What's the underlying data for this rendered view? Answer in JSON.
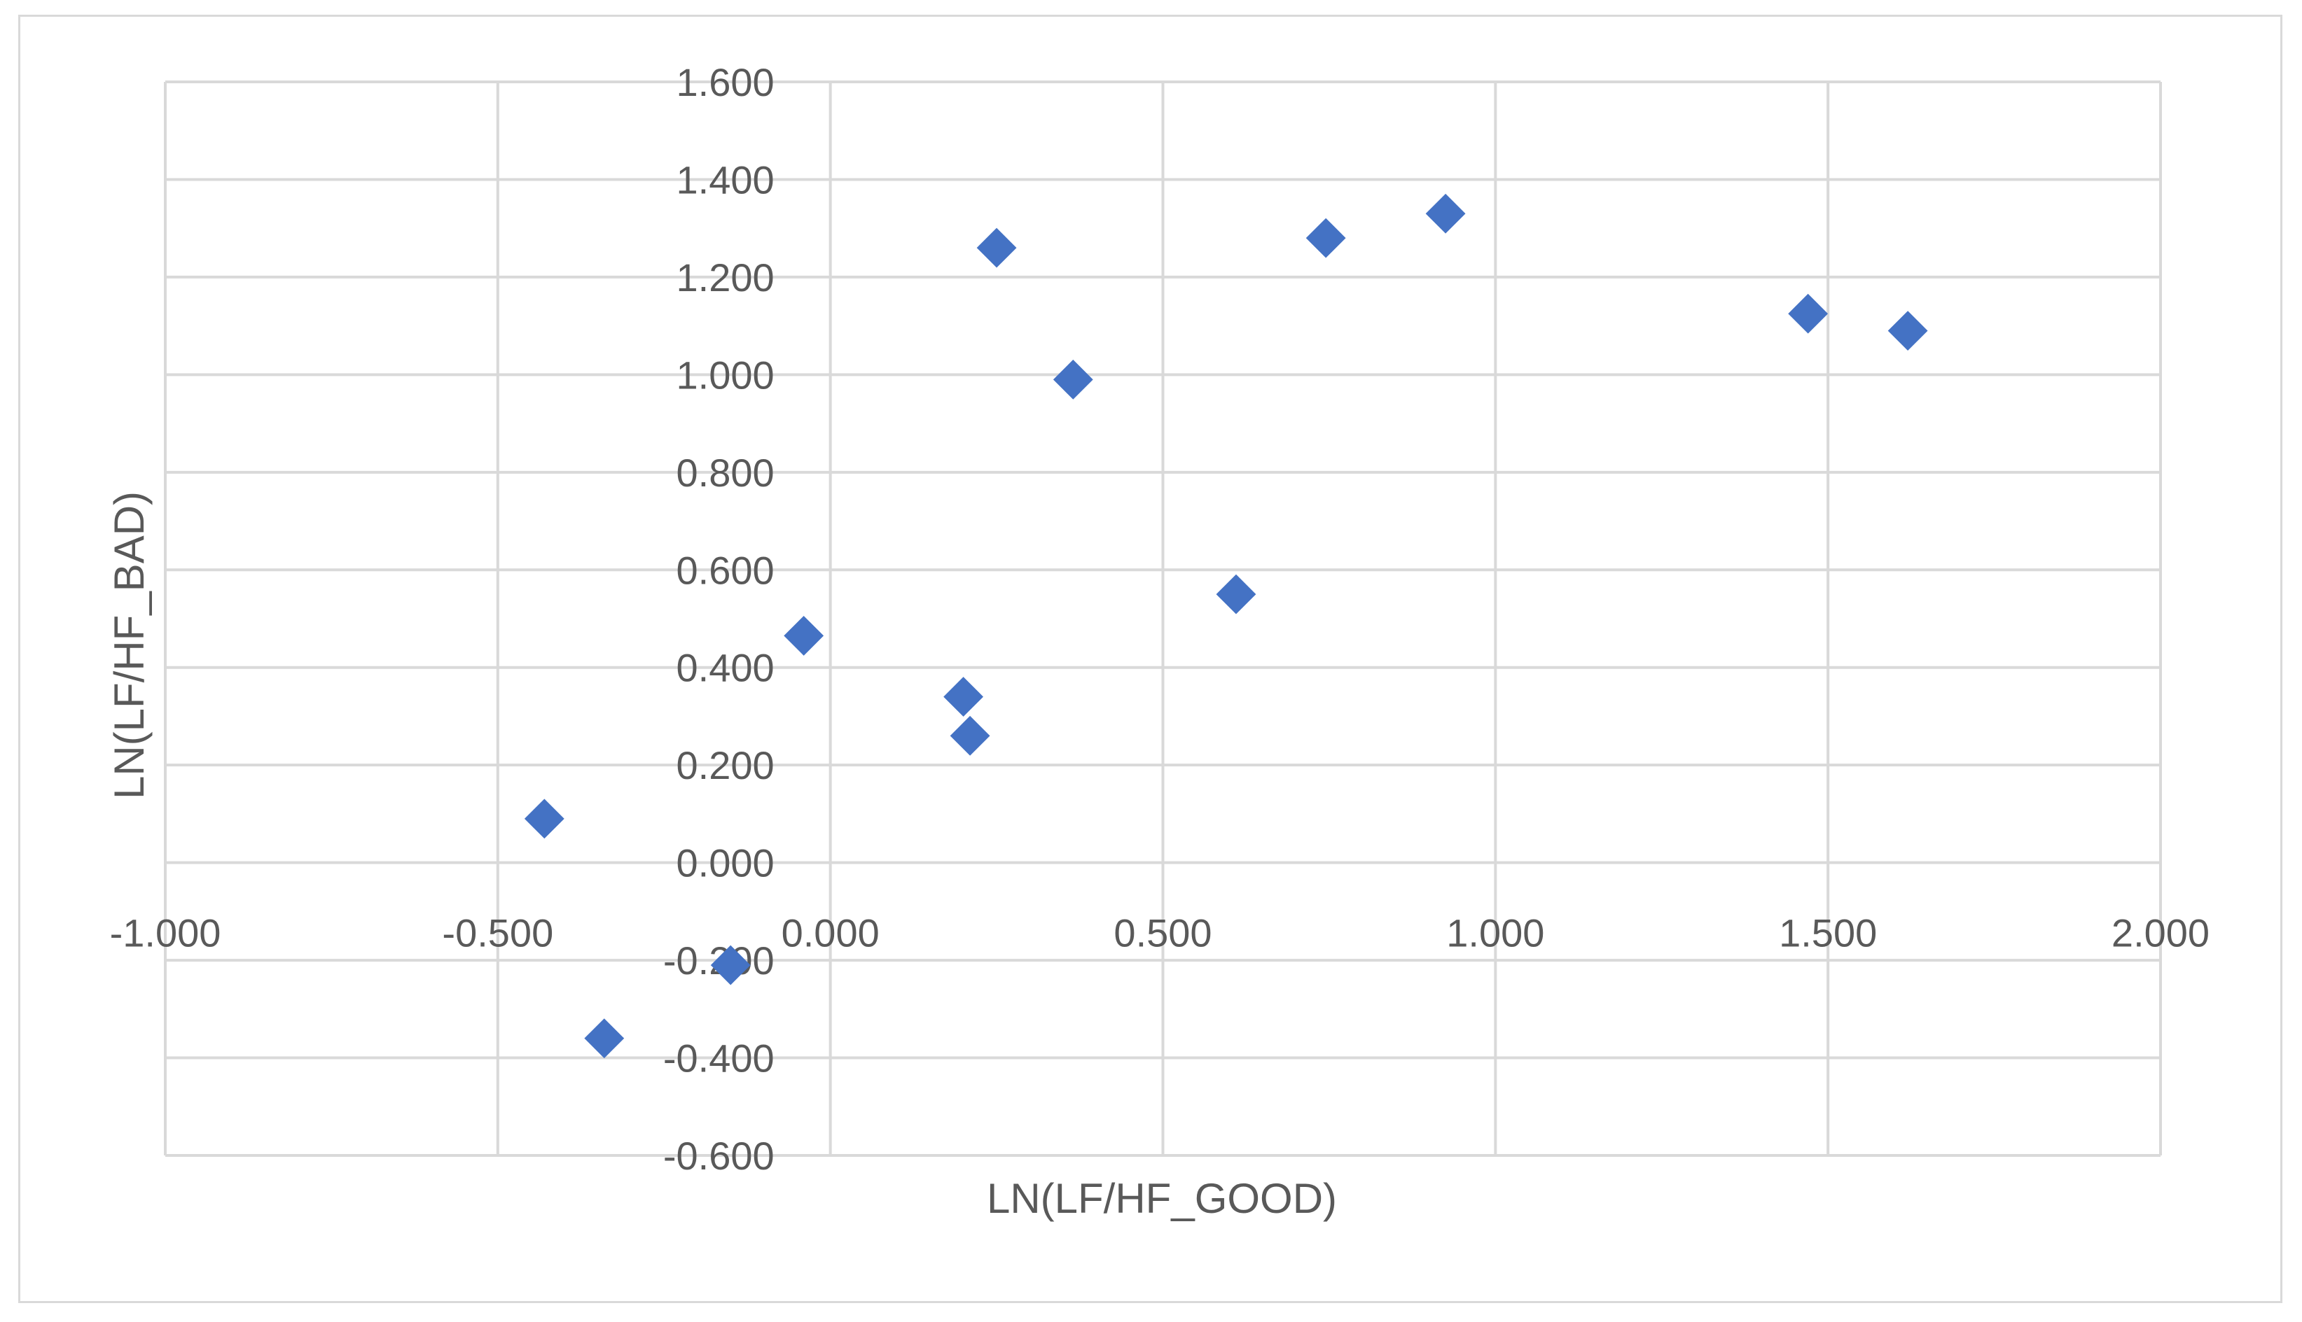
{
  "chart_data": {
    "type": "scatter",
    "title": "",
    "xlabel": "LN(LF/HF_GOOD)",
    "ylabel": "LN(LF/HF_BAD)",
    "xlim": [
      -1.0,
      2.0
    ],
    "ylim": [
      -0.6,
      1.6
    ],
    "x_ticks": [
      -1.0,
      -0.5,
      0.0,
      0.5,
      1.0,
      1.5,
      2.0
    ],
    "y_ticks": [
      -0.6,
      -0.4,
      -0.2,
      0.0,
      0.2,
      0.4,
      0.6,
      0.8,
      1.0,
      1.2,
      1.4,
      1.6
    ],
    "x_tick_labels": [
      "-1.000",
      "-0.500",
      "0.000",
      "0.500",
      "1.000",
      "1.500",
      "2.000"
    ],
    "y_tick_labels": [
      "-0.600",
      "-0.400",
      "-0.200",
      "0.000",
      "0.200",
      "0.400",
      "0.600",
      "0.800",
      "1.000",
      "1.200",
      "1.400",
      "1.600"
    ],
    "grid": true,
    "legend": "none",
    "marker": "diamond",
    "marker_color": "#4472C4",
    "series": [
      {
        "points": [
          {
            "x": -0.43,
            "y": 0.09
          },
          {
            "x": -0.34,
            "y": -0.36
          },
          {
            "x": -0.15,
            "y": -0.21
          },
          {
            "x": -0.04,
            "y": 0.465
          },
          {
            "x": 0.2,
            "y": 0.34
          },
          {
            "x": 0.21,
            "y": 0.26
          },
          {
            "x": 0.25,
            "y": 1.26
          },
          {
            "x": 0.365,
            "y": 0.99
          },
          {
            "x": 0.61,
            "y": 0.55
          },
          {
            "x": 0.745,
            "y": 1.28
          },
          {
            "x": 0.925,
            "y": 1.33
          },
          {
            "x": 1.47,
            "y": 1.125
          },
          {
            "x": 1.62,
            "y": 1.09
          }
        ]
      }
    ]
  }
}
